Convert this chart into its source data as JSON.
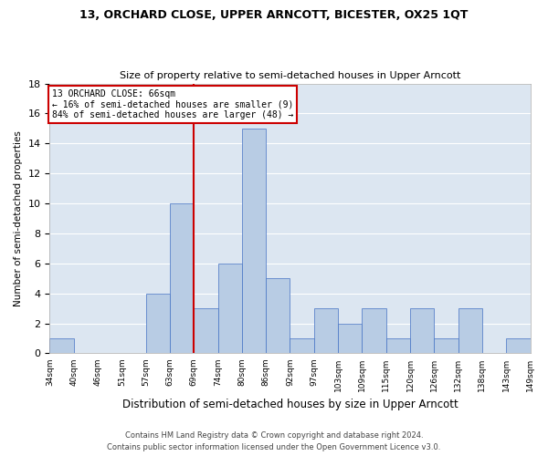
{
  "title1": "13, ORCHARD CLOSE, UPPER ARNCOTT, BICESTER, OX25 1QT",
  "title2": "Size of property relative to semi-detached houses in Upper Arncott",
  "xlabel": "Distribution of semi-detached houses by size in Upper Arncott",
  "ylabel": "Number of semi-detached properties",
  "footer1": "Contains HM Land Registry data © Crown copyright and database right 2024.",
  "footer2": "Contains public sector information licensed under the Open Government Licence v3.0.",
  "bin_labels": [
    "34sqm",
    "40sqm",
    "46sqm",
    "51sqm",
    "57sqm",
    "63sqm",
    "69sqm",
    "74sqm",
    "80sqm",
    "86sqm",
    "92sqm",
    "97sqm",
    "103sqm",
    "109sqm",
    "115sqm",
    "120sqm",
    "126sqm",
    "132sqm",
    "138sqm",
    "143sqm",
    "149sqm"
  ],
  "bar_values": [
    1,
    0,
    0,
    0,
    4,
    10,
    3,
    6,
    15,
    5,
    1,
    3,
    2,
    3,
    1,
    3,
    1,
    3,
    0,
    1
  ],
  "bar_color": "#b8cce4",
  "bar_edge_color": "#4472c4",
  "background_color": "#dce6f1",
  "fig_background": "#ffffff",
  "grid_color": "#ffffff",
  "ref_line_color": "#cc0000",
  "annotation_title": "13 ORCHARD CLOSE: 66sqm",
  "annotation_line1": "← 16% of semi-detached houses are smaller (9)",
  "annotation_line2": "84% of semi-detached houses are larger (48) →",
  "annotation_box_color": "#cc0000",
  "ylim": [
    0,
    18
  ],
  "yticks": [
    0,
    2,
    4,
    6,
    8,
    10,
    12,
    14,
    16,
    18
  ]
}
